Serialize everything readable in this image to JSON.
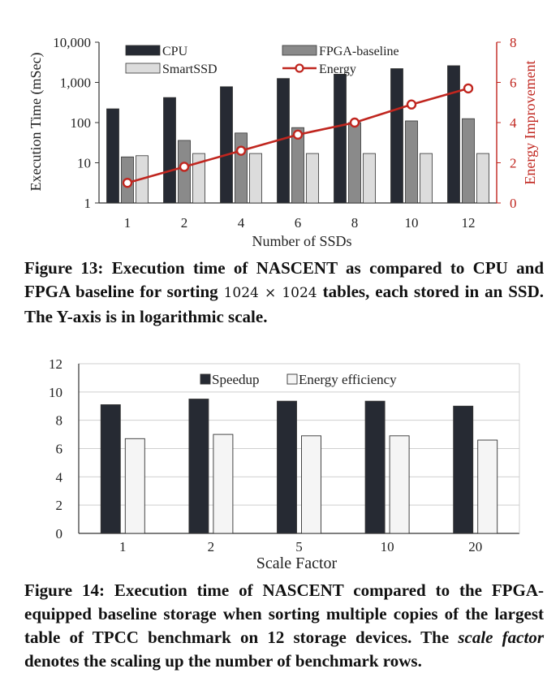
{
  "figure13": {
    "caption": {
      "label": "Figure 13:",
      "text_a": "Execution time of NASCENT as compared to CPU and FPGA baseline for sorting",
      "dims": "1024 × 1024",
      "text_b": "tables, each stored in an SSD. The Y-axis is in logarithmic scale."
    }
  },
  "figure14": {
    "caption": {
      "label": "Figure 14:",
      "text_a": "Execution time of NASCENT compared to the FPGA-equipped baseline storage when sorting multiple copies of the largest table of TPCC benchmark on 12 storage devices. The",
      "italic": "scale factor",
      "text_b": "denotes the scaling up the number of benchmark rows."
    }
  },
  "chart_data": [
    {
      "type": "bar",
      "xlabel": "Number of SSDs",
      "ylabel": "Execution Time (mSec)",
      "y2label": "Energy Improvement",
      "y_scale": "log",
      "ylim": [
        1,
        10000
      ],
      "yticks": [
        "1",
        "10",
        "100",
        "1,000",
        "10,000"
      ],
      "y2lim": [
        0,
        8
      ],
      "y2ticks": [
        "0",
        "2",
        "4",
        "6",
        "8"
      ],
      "categories": [
        "1",
        "2",
        "4",
        "6",
        "8",
        "10",
        "12"
      ],
      "series": [
        {
          "name": "CPU",
          "color": "#262a33",
          "values": [
            220,
            420,
            780,
            1250,
            1600,
            2200,
            2600
          ]
        },
        {
          "name": "FPGA-baseline",
          "color": "#8a8a8a",
          "values": [
            14,
            36,
            55,
            75,
            100,
            110,
            125
          ]
        },
        {
          "name": "SmartSSD",
          "color": "#dcdcdc",
          "values": [
            15,
            17,
            17,
            17,
            17,
            17,
            17
          ]
        }
      ],
      "line_series": {
        "name": "Energy",
        "color": "#c0261f",
        "axis": "right",
        "values": [
          1.0,
          1.8,
          2.6,
          3.4,
          4.0,
          4.9,
          5.7
        ]
      },
      "legend": "top",
      "grid": false
    },
    {
      "type": "bar",
      "xlabel": "Scale Factor",
      "ylabel": "",
      "ylim": [
        0,
        12
      ],
      "yticks": [
        "0",
        "2",
        "4",
        "6",
        "8",
        "10",
        "12"
      ],
      "categories": [
        "1",
        "2",
        "5",
        "10",
        "20"
      ],
      "series": [
        {
          "name": "Speedup",
          "color": "#262a33",
          "values": [
            9.1,
            9.5,
            9.35,
            9.35,
            9.0
          ]
        },
        {
          "name": "Energy efficiency",
          "color": "#f5f5f5",
          "values": [
            6.7,
            7.0,
            6.9,
            6.9,
            6.6
          ]
        }
      ],
      "legend": "top",
      "grid": true
    }
  ]
}
